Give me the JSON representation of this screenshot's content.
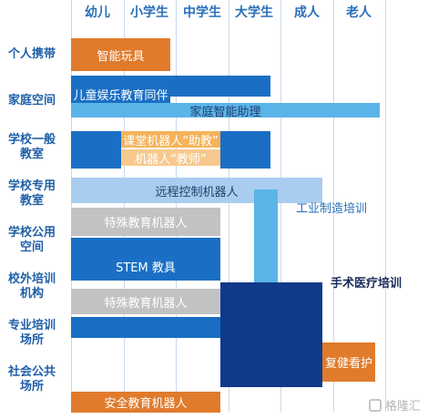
{
  "chart_data": {
    "type": "table",
    "columns": [
      "幼儿",
      "小学生",
      "中学生",
      "大学生",
      "成人",
      "老人"
    ],
    "rows": [
      "个人携带",
      "家庭空间",
      "学校一般教室",
      "学校专用教室",
      "学校公用空间",
      "校外培训机构",
      "专业培训场所",
      "社会公共场所"
    ],
    "row_labels": [
      {
        "lines": [
          "个人携带"
        ]
      },
      {
        "lines": [
          "家庭空间"
        ]
      },
      {
        "lines": [
          "学校一般",
          "教室"
        ]
      },
      {
        "lines": [
          "学校专用",
          "教室"
        ]
      },
      {
        "lines": [
          "学校公用",
          "空间"
        ]
      },
      {
        "lines": [
          "校外培训",
          "机构"
        ]
      },
      {
        "lines": [
          "专业培训",
          "场所"
        ]
      },
      {
        "lines": [
          "社会公共",
          "场所"
        ]
      }
    ],
    "bars": [
      {
        "label": "智能玩具",
        "start": 0,
        "end": 1.9,
        "top": 0.0,
        "height": 0.7,
        "color": "#e07b2c"
      },
      {
        "label": "",
        "start": 0,
        "end": 3.8,
        "top": 0.8,
        "height": 0.45,
        "color": "#1a6fc4"
      },
      {
        "label": "儿童娱乐教育同伴",
        "start": 0,
        "end": 1.9,
        "top": 1.0,
        "height": 0.4,
        "color": "#1a6fc4"
      },
      {
        "label": "家庭智能助理",
        "start": 0,
        "end": 5.9,
        "top": 1.4,
        "height": 0.32,
        "color": "#5ab4e8"
      },
      {
        "label": "",
        "start": 0,
        "end": 0.95,
        "top": 2.0,
        "height": 0.8,
        "color": "#1a6fc4"
      },
      {
        "label": "",
        "start": 2.85,
        "end": 3.8,
        "top": 2.0,
        "height": 0.8,
        "color": "#1a6fc4"
      },
      {
        "label": "课堂机器人“助教”",
        "start": 0.95,
        "end": 2.85,
        "top": 2.0,
        "height": 0.36,
        "color": "#f5b35a"
      },
      {
        "label": "机器人“教师”",
        "start": 0.95,
        "end": 2.85,
        "top": 2.4,
        "height": 0.36,
        "color": "#f7c98e"
      },
      {
        "label": "远程控制机器人",
        "start": 0,
        "end": 4.8,
        "top": 3.0,
        "height": 0.55,
        "color": "#a9cdee"
      },
      {
        "label": "特殊教育机器人",
        "start": 0,
        "end": 2.85,
        "top": 3.65,
        "height": 0.6,
        "color": "#c2c2c2"
      },
      {
        "label": "",
        "start": 0,
        "end": 2.85,
        "top": 4.3,
        "height": 0.55,
        "color": "#1a6fc4"
      },
      {
        "label": "STEM 教具",
        "start": 0,
        "end": 2.85,
        "top": 4.6,
        "height": 0.6,
        "color": "#1a6fc4"
      },
      {
        "label": "",
        "start": 3.5,
        "end": 3.95,
        "top": 3.25,
        "height": 4.2,
        "color": "#5ab4e8"
      },
      {
        "label": "",
        "start": 2.85,
        "end": 4.8,
        "top": 5.25,
        "height": 2.25,
        "color": "#0f3a8a"
      },
      {
        "label": "特殊教育机器人",
        "start": 0,
        "end": 2.85,
        "top": 5.4,
        "height": 0.55,
        "color": "#c2c2c2"
      },
      {
        "label": "",
        "start": 0,
        "end": 2.85,
        "top": 6.0,
        "height": 0.45,
        "color": "#1a6fc4"
      },
      {
        "label": "复健看护",
        "start": 4.8,
        "end": 5.8,
        "top": 6.55,
        "height": 0.85,
        "color": "#e07b2c"
      },
      {
        "label": "安全教育机器人",
        "start": 0,
        "end": 2.85,
        "top": 7.6,
        "height": 0.45,
        "color": "#e07b2c"
      }
    ],
    "notes": [
      {
        "label": "工业制造培训",
        "col": 4.3,
        "row": 3.45,
        "color": "#2a6fb8"
      },
      {
        "label": "手术医疗培训",
        "col": 4.95,
        "row": 5.05,
        "color": "#1a2a5a"
      }
    ],
    "watermark": "格隆汇"
  }
}
